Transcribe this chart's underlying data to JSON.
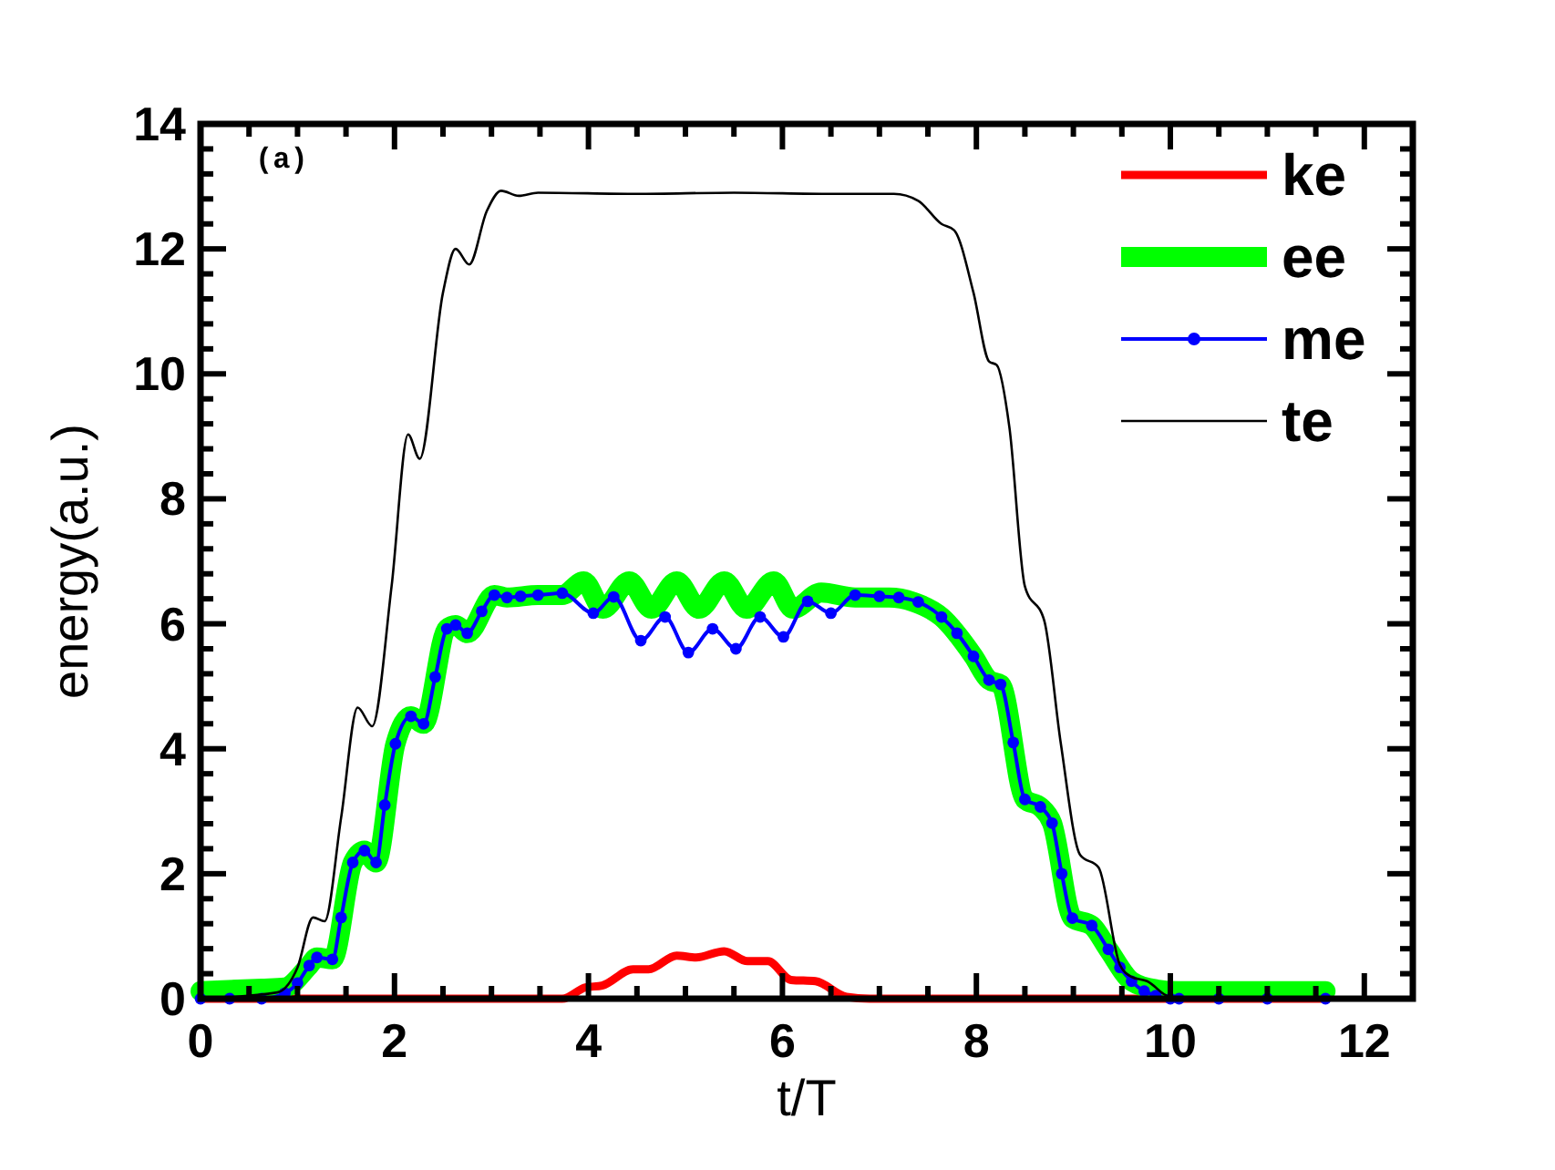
{
  "chart_data": {
    "type": "line",
    "xlabel": "t/T",
    "ylabel": "energy(a.u.)",
    "annotations": [
      "(a)"
    ],
    "legend": "top right",
    "grid": false,
    "xlim": [
      0,
      12.5
    ],
    "ylim": [
      0,
      14
    ],
    "xticks": [
      0,
      {
        "value": 0.5,
        "label": null
      },
      {
        "value": 1,
        "label": null
      },
      {
        "value": 1.5,
        "label": null
      },
      2,
      {
        "value": 2.5,
        "label": null
      },
      {
        "value": 3,
        "label": null
      },
      {
        "value": 3.5,
        "label": null
      },
      4,
      {
        "value": 4.5,
        "label": null
      },
      {
        "value": 5,
        "label": null
      },
      {
        "value": 5.5,
        "label": null
      },
      6,
      {
        "value": 6.5,
        "label": null
      },
      {
        "value": 7,
        "label": null
      },
      {
        "value": 7.5,
        "label": null
      },
      8,
      {
        "value": 8.5,
        "label": null
      },
      {
        "value": 9,
        "label": null
      },
      {
        "value": 9.5,
        "label": null
      },
      10,
      {
        "value": 10.5,
        "label": null
      },
      {
        "value": 11,
        "label": null
      },
      {
        "value": 11.5,
        "label": null
      },
      12
    ],
    "yticks": [
      0,
      {
        "value": 0.4,
        "label": null
      },
      {
        "value": 0.8,
        "label": null
      },
      {
        "value": 1.2,
        "label": null
      },
      {
        "value": 1.6,
        "label": null
      },
      2,
      {
        "value": 2.4,
        "label": null
      },
      {
        "value": 2.8,
        "label": null
      },
      {
        "value": 3.2,
        "label": null
      },
      {
        "value": 3.6,
        "label": null
      },
      4,
      {
        "value": 4.4,
        "label": null
      },
      {
        "value": 4.8,
        "label": null
      },
      {
        "value": 5.2,
        "label": null
      },
      {
        "value": 5.6,
        "label": null
      },
      6,
      {
        "value": 6.4,
        "label": null
      },
      {
        "value": 6.8,
        "label": null
      },
      {
        "value": 7.2,
        "label": null
      },
      {
        "value": 7.6,
        "label": null
      },
      8,
      {
        "value": 8.4,
        "label": null
      },
      {
        "value": 8.8,
        "label": null
      },
      {
        "value": 9.2,
        "label": null
      },
      {
        "value": 9.6,
        "label": null
      },
      10,
      {
        "value": 10.4,
        "label": null
      },
      {
        "value": 10.8,
        "label": null
      },
      {
        "value": 11.2,
        "label": null
      },
      {
        "value": 11.6,
        "label": null
      },
      12,
      {
        "value": 12.4,
        "label": null
      },
      {
        "value": 12.8,
        "label": null
      },
      {
        "value": 13.2,
        "label": null
      },
      {
        "value": 13.6,
        "label": null
      },
      14
    ],
    "series": [
      {
        "name": "ke",
        "color": "#ff0000",
        "marker": "none",
        "x": [
          0,
          1,
          2,
          3,
          3.73,
          3.97,
          4.14,
          4.46,
          4.62,
          4.91,
          5.11,
          5.4,
          5.64,
          5.85,
          6.09,
          6.34,
          6.66,
          6.9,
          8,
          9,
          10,
          11,
          11.6
        ],
        "values": [
          0,
          0,
          0,
          0,
          0,
          0.18,
          0.21,
          0.47,
          0.47,
          0.69,
          0.66,
          0.76,
          0.6,
          0.6,
          0.3,
          0.28,
          0.03,
          0,
          0,
          0,
          0,
          0,
          0
        ]
      },
      {
        "name": "ee",
        "color": "#00ff00",
        "marker": "none",
        "x": [
          0,
          0.63,
          0.87,
          1.12,
          1.2,
          1.36,
          1.57,
          1.69,
          1.81,
          2.01,
          2.17,
          2.3,
          2.54,
          2.63,
          2.75,
          3.03,
          3.16,
          3.48,
          3.73,
          3.95,
          4.15,
          4.42,
          4.65,
          4.91,
          5.14,
          5.4,
          5.63,
          5.91,
          6.11,
          6.4,
          6.75,
          7.1,
          7.35,
          7.64,
          7.97,
          8.13,
          8.25,
          8.5,
          8.66,
          8.78,
          8.99,
          9.19,
          9.36,
          9.6,
          9.85,
          10.09,
          11.6
        ],
        "values": [
          0.12,
          0.16,
          0.18,
          0.53,
          0.66,
          0.63,
          2.18,
          2.37,
          2.18,
          4.08,
          4.52,
          4.4,
          5.92,
          5.98,
          5.85,
          6.46,
          6.42,
          6.46,
          6.46,
          6.68,
          6.24,
          6.68,
          6.24,
          6.68,
          6.24,
          6.68,
          6.24,
          6.68,
          6.24,
          6.5,
          6.42,
          6.42,
          6.35,
          6.11,
          5.48,
          5.1,
          5.03,
          3.19,
          3.07,
          2.81,
          1.29,
          1.17,
          0.79,
          0.28,
          0.15,
          0.12,
          0.12
        ]
      },
      {
        "name": "me",
        "color": "#0000ff",
        "marker": "circle",
        "x": [
          0,
          0.3,
          0.63,
          0.87,
          1.0,
          1.12,
          1.2,
          1.36,
          1.45,
          1.57,
          1.69,
          1.81,
          1.9,
          2.01,
          2.17,
          2.3,
          2.42,
          2.54,
          2.63,
          2.75,
          2.9,
          3.03,
          3.16,
          3.3,
          3.48,
          3.73,
          4.05,
          4.26,
          4.54,
          4.79,
          5.03,
          5.28,
          5.52,
          5.77,
          6.01,
          6.26,
          6.5,
          6.75,
          7.0,
          7.2,
          7.4,
          7.64,
          7.8,
          7.97,
          8.13,
          8.25,
          8.38,
          8.5,
          8.66,
          8.78,
          8.88,
          8.99,
          9.19,
          9.36,
          9.48,
          9.6,
          9.73,
          9.85,
          10.0,
          10.09,
          10.5,
          11,
          11.6
        ],
        "values": [
          0,
          0,
          0,
          0.09,
          0.25,
          0.53,
          0.66,
          0.63,
          1.3,
          2.18,
          2.37,
          2.18,
          3.1,
          4.08,
          4.52,
          4.4,
          5.15,
          5.92,
          5.98,
          5.85,
          6.2,
          6.46,
          6.42,
          6.44,
          6.46,
          6.49,
          6.17,
          6.43,
          5.73,
          6.11,
          5.54,
          5.92,
          5.6,
          6.11,
          5.79,
          6.36,
          6.17,
          6.46,
          6.44,
          6.42,
          6.35,
          6.11,
          5.85,
          5.48,
          5.1,
          5.03,
          4.1,
          3.19,
          3.07,
          2.81,
          2.0,
          1.29,
          1.17,
          0.79,
          0.5,
          0.28,
          0.12,
          0.05,
          0,
          0,
          0,
          0,
          0
        ]
      },
      {
        "name": "te",
        "color": "#000000",
        "marker": "none",
        "x": [
          0,
          0.79,
          1.0,
          1.16,
          1.28,
          1.45,
          1.62,
          1.77,
          1.97,
          2.14,
          2.26,
          2.5,
          2.63,
          2.77,
          2.95,
          3.1,
          3.28,
          3.48,
          4.5,
          5.5,
          6.5,
          7.15,
          7.4,
          7.64,
          7.77,
          7.97,
          8.13,
          8.21,
          8.34,
          8.5,
          8.7,
          8.87,
          9.07,
          9.26,
          9.48,
          9.6,
          9.76,
          10.0,
          11.0,
          11.56
        ],
        "values": [
          0,
          0.1,
          0.5,
          1.3,
          1.24,
          2.9,
          4.66,
          4.36,
          6.6,
          9.03,
          8.64,
          11.3,
          12.0,
          11.75,
          12.6,
          12.93,
          12.85,
          12.9,
          12.88,
          12.9,
          12.88,
          12.88,
          12.77,
          12.4,
          12.3,
          11.3,
          10.2,
          10.14,
          9.15,
          6.6,
          6.05,
          4.09,
          2.3,
          2.1,
          0.54,
          0.35,
          0.28,
          0.03,
          0,
          0
        ]
      }
    ]
  }
}
